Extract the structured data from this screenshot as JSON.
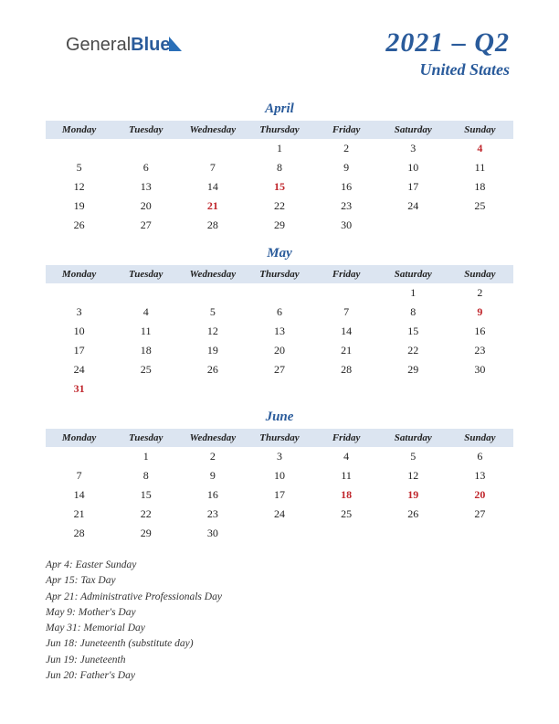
{
  "logo": {
    "part1": "General",
    "part2": "Blue"
  },
  "header": {
    "title": "2021 – Q2",
    "subtitle": "United States"
  },
  "dayHeaders": [
    "Monday",
    "Tuesday",
    "Wednesday",
    "Thursday",
    "Friday",
    "Saturday",
    "Sunday"
  ],
  "colors": {
    "accent": "#2a5b9b",
    "headerBg": "#dce5f1",
    "holiday": "#c0272d",
    "text": "#222222",
    "background": "#ffffff"
  },
  "typography": {
    "title_fontsize": 30,
    "subtitle_fontsize": 18,
    "month_fontsize": 15,
    "dayheader_fontsize": 11,
    "cell_fontsize": 12,
    "holiday_fontsize": 11.5
  },
  "months": [
    {
      "name": "April",
      "weeks": [
        [
          {
            "d": ""
          },
          {
            "d": ""
          },
          {
            "d": ""
          },
          {
            "d": "1"
          },
          {
            "d": "2"
          },
          {
            "d": "3"
          },
          {
            "d": "4",
            "h": true
          }
        ],
        [
          {
            "d": "5"
          },
          {
            "d": "6"
          },
          {
            "d": "7"
          },
          {
            "d": "8"
          },
          {
            "d": "9"
          },
          {
            "d": "10"
          },
          {
            "d": "11"
          }
        ],
        [
          {
            "d": "12"
          },
          {
            "d": "13"
          },
          {
            "d": "14"
          },
          {
            "d": "15",
            "h": true
          },
          {
            "d": "16"
          },
          {
            "d": "17"
          },
          {
            "d": "18"
          }
        ],
        [
          {
            "d": "19"
          },
          {
            "d": "20"
          },
          {
            "d": "21",
            "h": true
          },
          {
            "d": "22"
          },
          {
            "d": "23"
          },
          {
            "d": "24"
          },
          {
            "d": "25"
          }
        ],
        [
          {
            "d": "26"
          },
          {
            "d": "27"
          },
          {
            "d": "28"
          },
          {
            "d": "29"
          },
          {
            "d": "30"
          },
          {
            "d": ""
          },
          {
            "d": ""
          }
        ]
      ]
    },
    {
      "name": "May",
      "weeks": [
        [
          {
            "d": ""
          },
          {
            "d": ""
          },
          {
            "d": ""
          },
          {
            "d": ""
          },
          {
            "d": ""
          },
          {
            "d": "1"
          },
          {
            "d": "2"
          }
        ],
        [
          {
            "d": "3"
          },
          {
            "d": "4"
          },
          {
            "d": "5"
          },
          {
            "d": "6"
          },
          {
            "d": "7"
          },
          {
            "d": "8"
          },
          {
            "d": "9",
            "h": true
          }
        ],
        [
          {
            "d": "10"
          },
          {
            "d": "11"
          },
          {
            "d": "12"
          },
          {
            "d": "13"
          },
          {
            "d": "14"
          },
          {
            "d": "15"
          },
          {
            "d": "16"
          }
        ],
        [
          {
            "d": "17"
          },
          {
            "d": "18"
          },
          {
            "d": "19"
          },
          {
            "d": "20"
          },
          {
            "d": "21"
          },
          {
            "d": "22"
          },
          {
            "d": "23"
          }
        ],
        [
          {
            "d": "24"
          },
          {
            "d": "25"
          },
          {
            "d": "26"
          },
          {
            "d": "27"
          },
          {
            "d": "28"
          },
          {
            "d": "29"
          },
          {
            "d": "30"
          }
        ],
        [
          {
            "d": "31",
            "h": true
          },
          {
            "d": ""
          },
          {
            "d": ""
          },
          {
            "d": ""
          },
          {
            "d": ""
          },
          {
            "d": ""
          },
          {
            "d": ""
          }
        ]
      ]
    },
    {
      "name": "June",
      "weeks": [
        [
          {
            "d": ""
          },
          {
            "d": "1"
          },
          {
            "d": "2"
          },
          {
            "d": "3"
          },
          {
            "d": "4"
          },
          {
            "d": "5"
          },
          {
            "d": "6"
          }
        ],
        [
          {
            "d": "7"
          },
          {
            "d": "8"
          },
          {
            "d": "9"
          },
          {
            "d": "10"
          },
          {
            "d": "11"
          },
          {
            "d": "12"
          },
          {
            "d": "13"
          }
        ],
        [
          {
            "d": "14"
          },
          {
            "d": "15"
          },
          {
            "d": "16"
          },
          {
            "d": "17"
          },
          {
            "d": "18",
            "h": true
          },
          {
            "d": "19",
            "h": true
          },
          {
            "d": "20",
            "h": true
          }
        ],
        [
          {
            "d": "21"
          },
          {
            "d": "22"
          },
          {
            "d": "23"
          },
          {
            "d": "24"
          },
          {
            "d": "25"
          },
          {
            "d": "26"
          },
          {
            "d": "27"
          }
        ],
        [
          {
            "d": "28"
          },
          {
            "d": "29"
          },
          {
            "d": "30"
          },
          {
            "d": ""
          },
          {
            "d": ""
          },
          {
            "d": ""
          },
          {
            "d": ""
          }
        ]
      ]
    }
  ],
  "holidays": [
    "Apr 4: Easter Sunday",
    "Apr 15: Tax Day",
    "Apr 21: Administrative Professionals Day",
    "May 9: Mother's Day",
    "May 31: Memorial Day",
    "Jun 18: Juneteenth (substitute day)",
    "Jun 19: Juneteenth",
    "Jun 20: Father's Day"
  ]
}
